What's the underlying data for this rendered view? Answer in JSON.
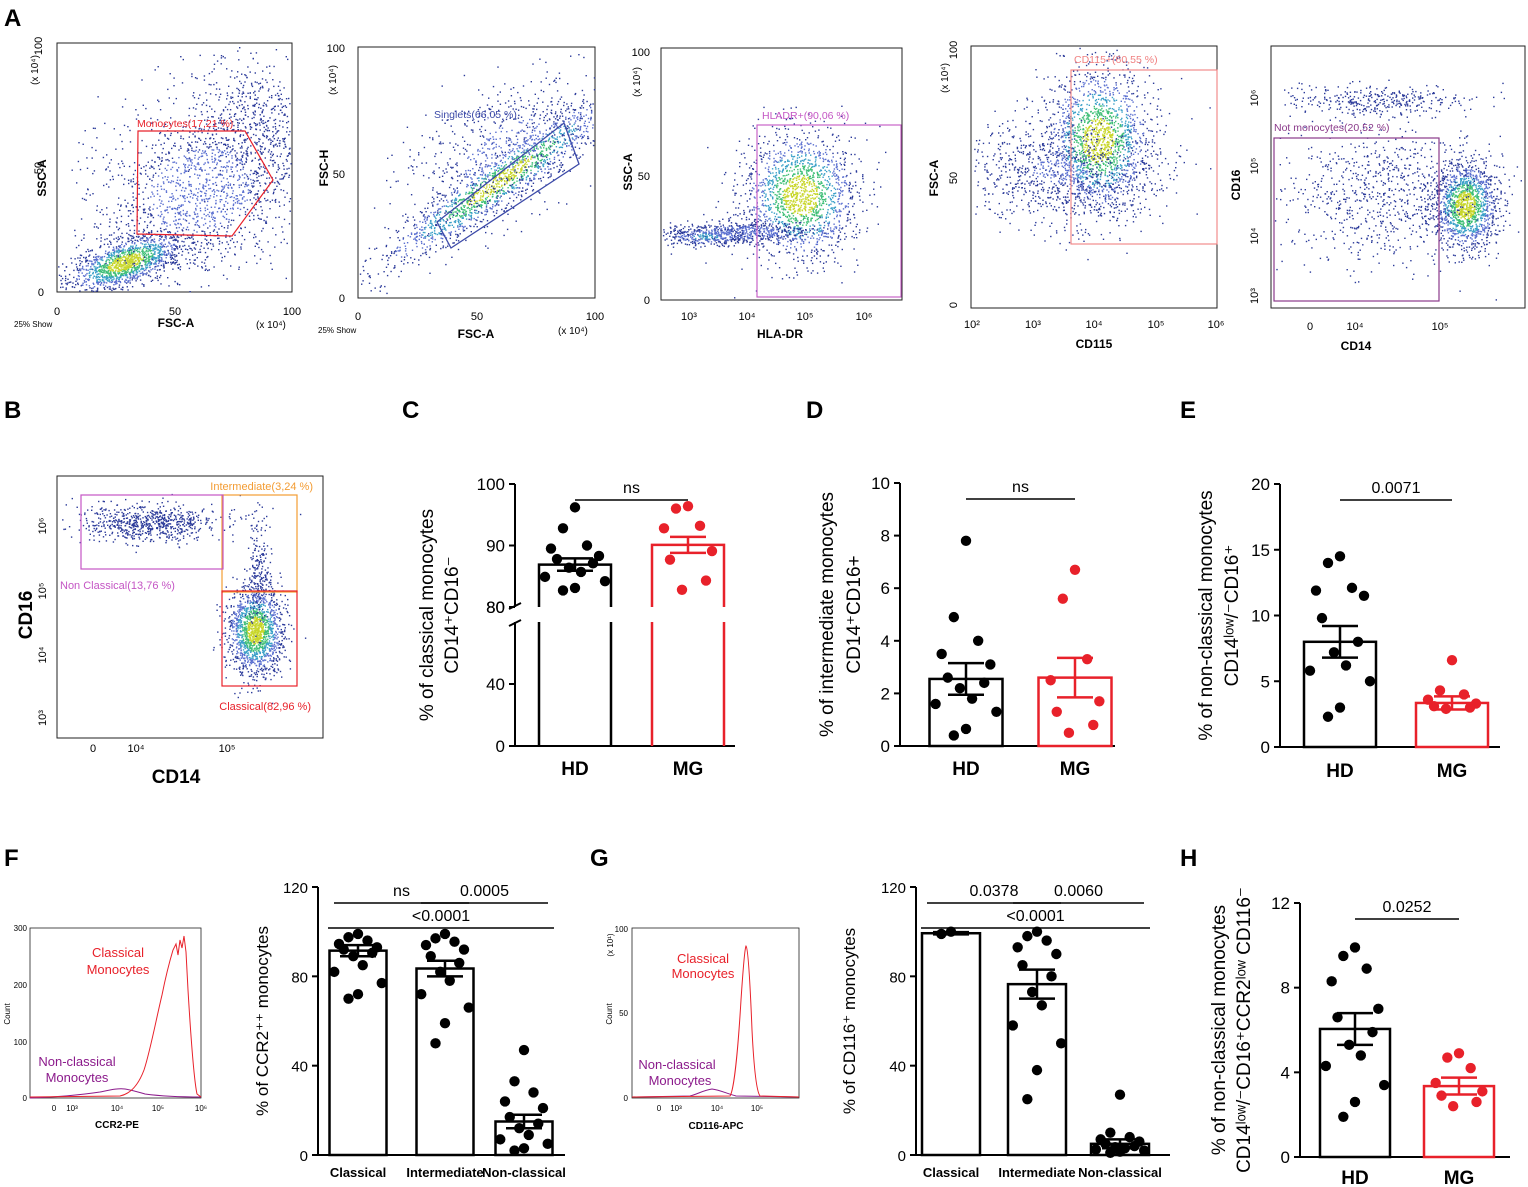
{
  "colors": {
    "black": "#000000",
    "red": "#e8212a",
    "purple": "#8b1a8b",
    "orange": "#f39c33",
    "pink": "#f08080",
    "navy": "#3c4aa8",
    "violet": "#8a3a8a",
    "magenta": "#c455c4"
  },
  "panels": {
    "A": "A",
    "B": "B",
    "C": "C",
    "D": "D",
    "E": "E",
    "F": "F",
    "G": "G",
    "H": "H"
  },
  "panel_a": {
    "plot1": {
      "ylabel": "SSC-A",
      "xlabel": "FSC-A",
      "x_ticks": [
        "0",
        "50",
        "100"
      ],
      "y_ticks": [
        "0",
        "50",
        "100"
      ],
      "x_unit": "(x 10⁴)",
      "y_unit": "(x 10⁴)",
      "show": "25% Show",
      "gate": "Monocytes(17,21 %)"
    },
    "plot2": {
      "ylabel": "FSC-H",
      "xlabel": "FSC-A",
      "x_ticks": [
        "0",
        "50",
        "100"
      ],
      "y_ticks": [
        "0",
        "50",
        "100"
      ],
      "x_unit": "(x 10⁴)",
      "y_unit": "(x 10⁴)",
      "show": "25% Show",
      "gate": "Singlets(66,05 %)"
    },
    "plot3": {
      "ylabel": "SSC-A",
      "xlabel": "HLA-DR",
      "x_ticks": [
        "10³",
        "10⁴",
        "10⁵",
        "10⁶"
      ],
      "y_ticks": [
        "0",
        "50",
        "100"
      ],
      "y_unit": "(x 10⁴)",
      "gate": "HLADR+(90,06 %)"
    },
    "plot4": {
      "ylabel": "FSC-A",
      "xlabel": "CD115",
      "x_ticks": [
        "10²",
        "10³",
        "10⁴",
        "10⁵",
        "10⁶"
      ],
      "y_ticks": [
        "0",
        "50",
        "100"
      ],
      "y_unit": "(x 10⁴)",
      "gate": "CD115+(60,55 %)"
    },
    "plot5": {
      "ylabel": "CD16",
      "xlabel": "CD14",
      "x_ticks": [
        "0",
        "10⁴",
        "10⁵"
      ],
      "y_ticks": [
        "10³",
        "10⁴",
        "10⁵",
        "10⁶"
      ],
      "gate": "Not monocytes(20,52 %)"
    }
  },
  "panel_b": {
    "ylabel": "CD16",
    "xlabel": "CD14",
    "x_ticks": [
      "0",
      "10⁴",
      "10⁵"
    ],
    "y_ticks": [
      "10³",
      "10⁴",
      "10⁵",
      "10⁶"
    ],
    "gate_intermediate": "Intermediate(3,24 %)",
    "gate_nonclassical": "Non Classical(13,76 %)",
    "gate_classical": "Classical(82,96 %)"
  },
  "panel_f_hist": {
    "xlabel": "CCR2-PE",
    "ylabel": "Count",
    "y_ticks": [
      "0",
      "100",
      "200",
      "300"
    ],
    "x_ticks": [
      "0",
      "10³",
      "10⁴",
      "10⁵",
      "10⁶"
    ],
    "classical_label": [
      "Classical",
      "Monocytes"
    ],
    "nonclassical_label": [
      "Non-classical",
      "Monocytes"
    ]
  },
  "panel_g_hist": {
    "xlabel": "CD116-APC",
    "ylabel": "Count",
    "y_unit": "(x 10¹)",
    "y_ticks": [
      "0",
      "50",
      "100"
    ],
    "x_ticks": [
      "0",
      "10³",
      "10⁴",
      "10⁵"
    ],
    "classical_label": [
      "Classical",
      "Monocytes"
    ],
    "nonclassical_label": [
      "Non-classical",
      "Monocytes"
    ]
  },
  "chart_data": [
    {
      "id": "C",
      "type": "bar",
      "categories": [
        "HD",
        "MG"
      ],
      "ylabel_lines": [
        "% of classical monocytes",
        "CD14⁺CD16⁻"
      ],
      "ylim_lower": [
        0,
        80
      ],
      "ylim_upper": [
        80,
        100
      ],
      "y_ticks_lower": [
        0,
        40,
        80
      ],
      "y_ticks_upper": [
        80,
        90,
        100
      ],
      "means": [
        86.9,
        90.1
      ],
      "sems": [
        1.0,
        1.3
      ],
      "points": [
        [
          96.2,
          92.8,
          90.0,
          89.5,
          88.3,
          87.8,
          87.1,
          86.4,
          85.7,
          84.9,
          84.2,
          83.1,
          82.7
        ],
        [
          96.4,
          96.0,
          93.2,
          92.8,
          89.1,
          87.7,
          84.3,
          82.8
        ]
      ],
      "comparisons": [
        {
          "from": 0,
          "to": 1,
          "label": "ns"
        }
      ]
    },
    {
      "id": "D",
      "type": "bar",
      "categories": [
        "HD",
        "MG"
      ],
      "ylabel_lines": [
        "% of intermediate monocytes",
        "CD14⁺CD16+"
      ],
      "ylim": [
        0,
        10
      ],
      "y_ticks": [
        0,
        2,
        4,
        6,
        8,
        10
      ],
      "means": [
        2.55,
        2.6
      ],
      "sems": [
        0.6,
        0.75
      ],
      "points": [
        [
          7.8,
          4.9,
          4.0,
          3.5,
          3.1,
          2.6,
          2.4,
          2.2,
          1.8,
          1.6,
          1.3,
          0.65,
          0.4
        ],
        [
          6.7,
          5.6,
          3.3,
          2.5,
          1.7,
          1.3,
          0.8,
          0.5
        ]
      ],
      "comparisons": [
        {
          "from": 0,
          "to": 1,
          "label": "ns"
        }
      ]
    },
    {
      "id": "E",
      "type": "bar",
      "categories": [
        "HD",
        "MG"
      ],
      "ylabel_lines": [
        "% of non-classical monocytes",
        "CD14ˡᵒʷ/⁻CD16⁺"
      ],
      "ylim": [
        0,
        20
      ],
      "y_ticks": [
        0,
        5,
        10,
        15,
        20
      ],
      "means": [
        8.0,
        3.35
      ],
      "sems": [
        1.2,
        0.5
      ],
      "points": [
        [
          14.5,
          14.0,
          12.1,
          11.9,
          11.5,
          9.8,
          8.0,
          7.2,
          6.2,
          5.8,
          5.0,
          3.0,
          2.3
        ],
        [
          6.6,
          4.3,
          4.0,
          3.6,
          3.3,
          3.1,
          3.0,
          2.9
        ]
      ],
      "comparisons": [
        {
          "from": 0,
          "to": 1,
          "label": "0.0071"
        }
      ]
    },
    {
      "id": "F",
      "type": "bar",
      "categories": [
        "Classical",
        "Intermediate",
        "Non-classical"
      ],
      "ylabel_lines": [
        "% of CCR2⁺⁺ monocytes"
      ],
      "ylim": [
        0,
        120
      ],
      "y_ticks": [
        0,
        40,
        80,
        120
      ],
      "means": [
        91.5,
        83.5,
        15.0
      ],
      "sems": [
        2.5,
        3.5,
        3.0
      ],
      "points": [
        [
          99.0,
          97.5,
          96.0,
          94.5,
          93.0,
          92.0,
          90.5,
          89.0,
          85.0,
          82.0,
          77.0,
          72.0,
          70.0
        ],
        [
          99.0,
          97.0,
          95.5,
          94.0,
          92.0,
          89.0,
          86.0,
          82.0,
          78.0,
          72.0,
          66.0,
          59.0,
          50.0
        ],
        [
          47.0,
          33.0,
          28.0,
          24.0,
          21.0,
          17.0,
          14.0,
          12.0,
          9.0,
          7.0,
          5.0,
          3.0,
          2.0
        ]
      ],
      "comparisons": [
        {
          "from": 0,
          "to": 1,
          "label": "ns",
          "tier": 0
        },
        {
          "from": 1,
          "to": 2,
          "label": "0.0005",
          "tier": 0
        },
        {
          "from": 0,
          "to": 2,
          "label": "<0.0001",
          "tier": 1
        }
      ]
    },
    {
      "id": "G",
      "type": "bar",
      "categories": [
        "Classical",
        "Intermediate",
        "Non-classical"
      ],
      "ylabel_lines": [
        "% of CD116⁺ monocytes"
      ],
      "ylim": [
        0,
        120
      ],
      "y_ticks": [
        0,
        40,
        80,
        120
      ],
      "means": [
        99.3,
        76.5,
        5.0
      ],
      "sems": [
        0.5,
        6.5,
        2.0
      ],
      "points": [
        [
          100.0,
          99.0
        ],
        [
          100.0,
          98.0,
          96.0,
          93.0,
          90.0,
          85.0,
          80.0,
          73.0,
          67.0,
          58.0,
          50.0,
          38.0,
          25.0
        ],
        [
          27.0,
          10.0,
          8.0,
          7.0,
          6.0,
          5.0,
          4.0,
          3.5,
          3.0,
          2.5,
          2.0,
          1.5,
          1.0
        ]
      ],
      "comparisons": [
        {
          "from": 0,
          "to": 1,
          "label": "0.0378",
          "tier": 0
        },
        {
          "from": 1,
          "to": 2,
          "label": "0.0060",
          "tier": 0
        },
        {
          "from": 0,
          "to": 2,
          "label": "<0.0001",
          "tier": 1
        }
      ]
    },
    {
      "id": "H",
      "type": "bar",
      "categories": [
        "HD",
        "MG"
      ],
      "ylabel_lines": [
        "% of non-classical monocytes",
        "CD14ˡᵒʷ/⁻CD16⁺CCR2ˡᵒʷ CD116⁻"
      ],
      "ylim": [
        0,
        12
      ],
      "y_ticks": [
        0,
        4,
        8,
        12
      ],
      "means": [
        6.05,
        3.35
      ],
      "sems": [
        0.75,
        0.4
      ],
      "points": [
        [
          9.9,
          9.5,
          8.9,
          8.3,
          7.0,
          6.6,
          5.9,
          5.3,
          4.8,
          4.3,
          3.4,
          2.6,
          1.9
        ],
        [
          4.9,
          4.7,
          4.2,
          3.5,
          3.1,
          2.9,
          2.6,
          2.4
        ]
      ],
      "comparisons": [
        {
          "from": 0,
          "to": 1,
          "label": "0.0252"
        }
      ]
    }
  ]
}
